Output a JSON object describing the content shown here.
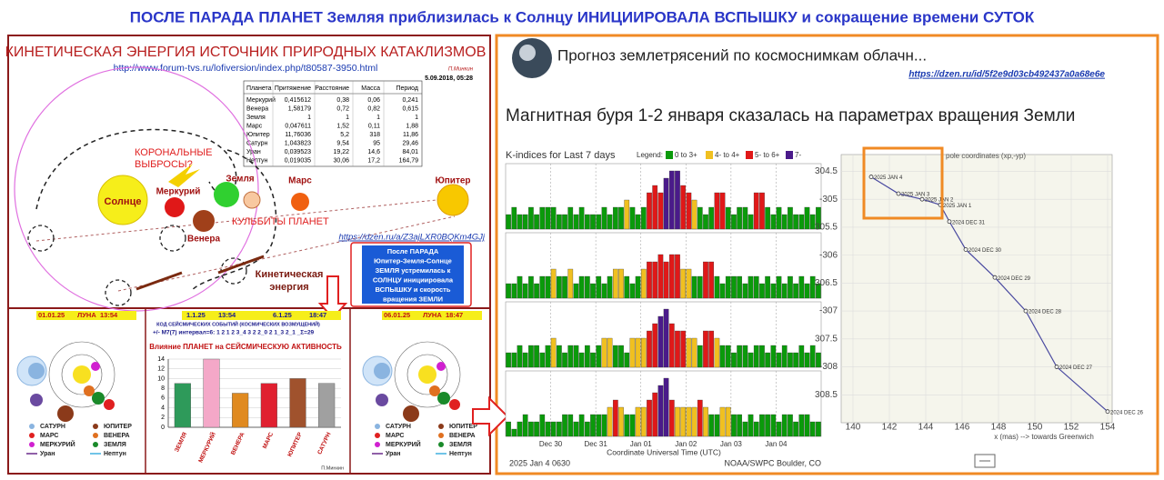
{
  "header": {
    "title": "ПОСЛЕ ПАРАДА ПЛАНЕТ Земляя приблизилась к Солнцу ИНИЦИИРОВАЛА ВСПЫШКУ и сокращение времени СУТОК"
  },
  "left": {
    "title": "КИНЕТИЧЕСКАЯ ЭНЕРГИЯ ИСТОЧНИК ПРИРОДНЫХ КАТАКЛИЗМОВ",
    "url": "http://www.forum-tvs.ru/lofiversion/index.php/t80587-3950.html",
    "author": "П.Минкин",
    "date": "5.09.2018, 05:28",
    "table": {
      "header": [
        "Планета",
        "Притяжение",
        "Расстояние",
        "Масса",
        "Период"
      ],
      "rows": [
        [
          "Меркурий",
          "0,415612",
          "0,38",
          "0,06",
          "0,241"
        ],
        [
          "Венера",
          "1,58179",
          "0,72",
          "0,82",
          "0,615"
        ],
        [
          "Земля",
          "1",
          "1",
          "1",
          "1"
        ],
        [
          "Марс",
          "0,047611",
          "1,52",
          "0,11",
          "1,88"
        ],
        [
          "Юпитер",
          "11,76036",
          "5,2",
          "318",
          "11,86"
        ],
        [
          "Сатурн",
          "1,043823",
          "9,54",
          "95",
          "29,46"
        ],
        [
          "Уран",
          "0,039523",
          "19,22",
          "14,6",
          "84,01"
        ],
        [
          "Нептун",
          "0,019035",
          "30,06",
          "17,2",
          "164,79"
        ]
      ]
    },
    "labels": {
      "sun": "Солнце",
      "mercury": "Меркурий",
      "venus": "Венера",
      "earth": "Земля",
      "mars": "Марс",
      "jupiter": "Юпитер",
      "coronal": [
        "КОРОНАЛЬНЫЕ",
        "ВЫБРОСЫ?"
      ],
      "kulbity": "КУЛЬБИТЫ ПЛАНЕТ",
      "energy": [
        "Кинетическая",
        "энергия"
      ]
    },
    "link": "https://dzen.ru/a/Z3ajLXR0BQKm4GJj",
    "note": [
      "После ПАРАДА",
      "Юпитер-Земля-Солнце",
      "ЗЕМЛЯ устремилась к",
      "СОЛНЦУ инициировала",
      "ВСПЫШКУ и скорость",
      "вращения ЗЕМЛИ"
    ],
    "panel_a": {
      "date": "01.01.25",
      "moon": "ЛУНА",
      "time": "13:54"
    },
    "panel_b": {
      "date1": "1.1.25",
      "time1": "13:54",
      "date2": "6.1.25",
      "time2": "18:47",
      "code_title": "КОД СЕЙСМИЧЕСКИХ СОБЫТИЙ (КОСМИЧЕСКИХ ВОЗМУЩЕНИЙ)",
      "code": "+/- M7(7) интервал=6:  1 2 1 2 3_4 3 2 2_0 2 1_3 2_1 _Σ=29",
      "author": "П.Минкин"
    },
    "panel_c": {
      "date": "06.01.25",
      "moon": "ЛУНА",
      "time": "18:47"
    },
    "legend": [
      {
        "name": "САТУРН",
        "color": "#8ab4e0"
      },
      {
        "name": "ЮПИТЕР",
        "color": "#8b3a1a"
      },
      {
        "name": "МАРС",
        "color": "#e02020"
      },
      {
        "name": "ВЕНЕРА",
        "color": "#e07020"
      },
      {
        "name": "МЕРКУРИЙ",
        "color": "#d020d0"
      },
      {
        "name": "ЗЕМЛЯ",
        "color": "#1a8a2a"
      },
      {
        "name": "Уран",
        "color": "#6a2a8a"
      },
      {
        "name": "Нептун",
        "color": "#40b0e0"
      }
    ]
  },
  "right": {
    "source": "Прогноз землетрясений по космоснимкам облачн...",
    "url": "https://dzen.ru/id/5f2e9d03cb492437a0a68e6e",
    "heading": "Магнитная буря 1-2 января сказалась на параметрах вращения Земли"
  },
  "chart_data": [
    {
      "type": "bar",
      "title": "Влияние ПЛАНЕТ на СЕЙСМИЧЕСКУЮ АКТИВНОСТЬ",
      "categories": [
        "ЗЕМЛЯ",
        "МЕРКУРИЙ",
        "ВЕНЕРА",
        "МАРС",
        "ЮПИТЕР",
        "САТУРН"
      ],
      "values": [
        9,
        14,
        7,
        9,
        10,
        9
      ],
      "colors": [
        "#2e9a5a",
        "#f4a8c8",
        "#e08a20",
        "#e02030",
        "#a0522d",
        "#a0a0a0"
      ],
      "ylim": [
        0,
        14
      ],
      "yticks": [
        0,
        2,
        4,
        6,
        8,
        10,
        12,
        14
      ],
      "grid": true
    },
    {
      "type": "kindex",
      "title": "K-indices for Last 7 days",
      "legend_title": "Legend:",
      "legend": [
        {
          "label": "0 to 3+",
          "color": "#0a9a0a",
          "from": 0
        },
        {
          "label": "4- to 4+",
          "color": "#f0c020",
          "from": 4
        },
        {
          "label": "5- to 6+",
          "color": "#e01818",
          "from": 5
        },
        {
          "label": "7-",
          "color": "#4a1a8a",
          "from": 7
        }
      ],
      "ylim": [
        0,
        9
      ],
      "panels": [
        {
          "values": [
            2,
            3,
            2,
            2,
            3,
            2,
            3,
            3,
            3,
            2,
            2,
            3,
            2,
            3,
            2,
            2,
            2,
            3,
            2,
            3,
            3,
            4,
            3,
            2,
            3,
            5,
            6,
            5,
            7,
            8,
            8,
            6,
            5,
            4,
            3,
            2,
            3,
            5,
            5,
            3,
            2,
            3,
            3,
            2,
            5,
            5,
            3,
            2,
            3,
            2,
            3,
            2,
            2,
            3,
            2,
            3
          ]
        },
        {
          "values": [
            2,
            2,
            3,
            2,
            3,
            2,
            3,
            3,
            4,
            3,
            3,
            4,
            2,
            3,
            3,
            2,
            3,
            2,
            3,
            4,
            4,
            3,
            2,
            3,
            4,
            5,
            5,
            6,
            5,
            6,
            6,
            4,
            4,
            3,
            3,
            5,
            5,
            3,
            2,
            3,
            3,
            3,
            2,
            3,
            3,
            2,
            3,
            2,
            3,
            2,
            3,
            2,
            3,
            2,
            3,
            2
          ]
        },
        {
          "values": [
            2,
            2,
            3,
            2,
            3,
            3,
            2,
            3,
            4,
            3,
            2,
            3,
            3,
            2,
            3,
            2,
            3,
            4,
            4,
            3,
            3,
            2,
            4,
            4,
            4,
            5,
            6,
            7,
            8,
            6,
            5,
            5,
            4,
            4,
            3,
            5,
            5,
            4,
            3,
            3,
            2,
            3,
            3,
            2,
            3,
            3,
            2,
            3,
            2,
            3,
            2,
            2,
            3,
            2,
            3,
            2
          ]
        },
        {
          "values": [
            2,
            1,
            2,
            3,
            2,
            2,
            3,
            2,
            2,
            2,
            3,
            3,
            2,
            3,
            2,
            3,
            3,
            3,
            4,
            5,
            4,
            3,
            3,
            4,
            4,
            5,
            6,
            7,
            8,
            5,
            4,
            4,
            4,
            4,
            5,
            4,
            3,
            3,
            4,
            4,
            3,
            3,
            2,
            3,
            2,
            3,
            3,
            3,
            2,
            3,
            3,
            2,
            3,
            3,
            2,
            2
          ]
        }
      ],
      "x_labels": [
        "Dec 30",
        "Dec 31",
        "Jan 01",
        "Jan 02",
        "Jan 03",
        "Jan 04"
      ],
      "xlabel": "Coordinate Universal Time (UTC)",
      "footer_left": "2025 Jan  4 0630",
      "footer_right": "NOAA/SWPC Boulder, CO"
    },
    {
      "type": "line",
      "title": "pole coordinates (xp,-yp)",
      "x": [
        141,
        142.5,
        143.8,
        144.8,
        145.3,
        146.2,
        147.8,
        149.5,
        151.2,
        154
      ],
      "values": [
        304.6,
        304.9,
        305.0,
        305.1,
        305.4,
        305.9,
        306.4,
        307.0,
        308.0,
        308.8
      ],
      "point_labels": [
        "2025 JAN 4",
        "2025 JAN 3",
        "2025 JAN 2",
        "2025 JAN 1",
        "2024 DEC 31",
        "2024 DEC 30",
        "2024 DEC 29",
        "2024 DEC 28",
        "2024 DEC 27",
        "2024 DEC 26"
      ],
      "color": "#4a4aa0",
      "xlim": [
        140,
        154
      ],
      "ylim": [
        304.2,
        309
      ],
      "y_inverted": true,
      "xticks": [
        140,
        142,
        144,
        146,
        148,
        150,
        152,
        154
      ],
      "yticks": [
        304.5,
        {
          "value": 305,
          "label": "-305"
        },
        305.5,
        {
          "value": 306,
          "label": "-306"
        },
        306.5,
        {
          "value": 307,
          "label": "-307"
        },
        307.5,
        {
          "value": 308,
          "label": "-308"
        },
        308.5
      ],
      "xlabel": "x (mas) --> towards Greenwich",
      "grid": true
    }
  ]
}
